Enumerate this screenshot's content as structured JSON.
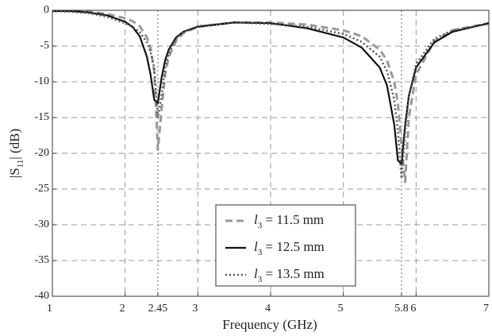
{
  "chart_data": {
    "type": "line",
    "xlabel": "Frequency (GHz)",
    "ylabel": "|S11| (dB)",
    "x": [
      1,
      1.25,
      1.5,
      1.75,
      2,
      2.1,
      2.2,
      2.3,
      2.35,
      2.4,
      2.45,
      2.5,
      2.55,
      2.6,
      2.7,
      2.8,
      3,
      3.5,
      4,
      4.5,
      5,
      5.25,
      5.5,
      5.6,
      5.7,
      5.75,
      5.8,
      5.85,
      5.9,
      6,
      6.25,
      6.5,
      7
    ],
    "series": [
      {
        "name": "l3 = 11.5 mm",
        "color": "#999999",
        "style": "dashed",
        "values": [
          -0.1,
          -0.1,
          -0.2,
          -0.5,
          -1.1,
          -1.5,
          -2.2,
          -3.8,
          -5.3,
          -8.5,
          -19.5,
          -14,
          -9,
          -6.5,
          -4.3,
          -3.2,
          -2.3,
          -1.7,
          -1.7,
          -2,
          -2.8,
          -3.6,
          -5.5,
          -7,
          -10,
          -13,
          -19,
          -24,
          -15,
          -9,
          -4.3,
          -2.8,
          -1.8
        ]
      },
      {
        "name": "l3 = 12.5 mm",
        "color": "#111111",
        "style": "solid",
        "values": [
          -0.1,
          -0.1,
          -0.3,
          -0.7,
          -1.6,
          -2.3,
          -3.6,
          -6.5,
          -9,
          -12.5,
          -13,
          -9.5,
          -7,
          -5.5,
          -3.8,
          -3,
          -2.3,
          -1.7,
          -1.8,
          -2.5,
          -3.8,
          -5.2,
          -8,
          -10.5,
          -16,
          -21,
          -21.5,
          -16,
          -12,
          -8,
          -4.5,
          -3,
          -1.8
        ]
      },
      {
        "name": "l3 = 13.5 mm",
        "color": "#555555",
        "style": "dotted",
        "values": [
          -0.1,
          -0.2,
          -0.4,
          -0.9,
          -1.8,
          -2.3,
          -3,
          -4.5,
          -5.8,
          -8,
          -15,
          -12,
          -8,
          -6,
          -4,
          -3,
          -2.2,
          -1.7,
          -1.9,
          -2.3,
          -3.3,
          -4.4,
          -6.5,
          -8.5,
          -12.5,
          -17,
          -23.5,
          -17,
          -12,
          -7.5,
          -4,
          -2.8,
          -1.9
        ]
      }
    ],
    "xlim": [
      1,
      7
    ],
    "ylim": [
      -40,
      0
    ],
    "xticks": [
      1,
      2,
      2.45,
      3,
      4,
      5,
      5.8,
      6,
      7
    ],
    "yticks": [
      0,
      -5,
      -10,
      -15,
      -20,
      -25,
      -30,
      -35,
      -40
    ],
    "key_xticks": [
      2.45,
      5.8
    ],
    "grid": true,
    "legend": "lower center"
  }
}
